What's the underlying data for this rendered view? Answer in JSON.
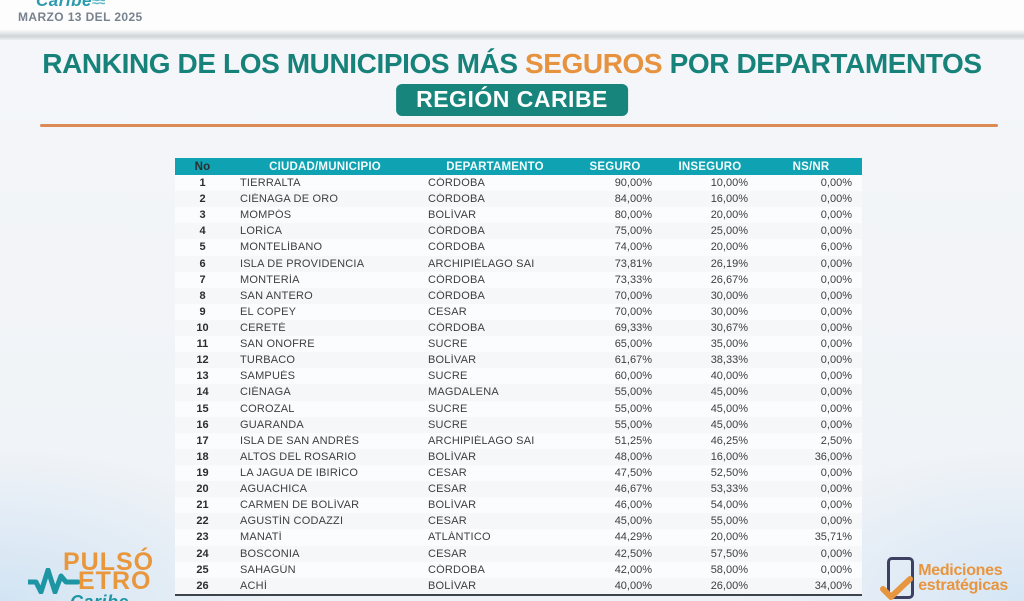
{
  "topbar": {
    "brand": "Caribe",
    "brand_waves": "≈≈",
    "date": "MARZO 13 DEL 2025"
  },
  "title": {
    "prefix": "RANKING DE LOS MUNICIPIOS MÁS ",
    "highlight": "SEGUROS",
    "suffix": " POR DEPARTAMENTOS",
    "badge": "REGIÓN CARIBE"
  },
  "table": {
    "columns": [
      "No",
      "CIUDAD/MUNICIPIO",
      "DEPARTAMENTO",
      "SEGURO",
      "INSEGURO",
      "NS/NR"
    ],
    "rows": [
      {
        "no": "1",
        "city": "TIERRALTA",
        "department": "CÓRDOBA",
        "safe": "90,00%",
        "unsafe": "10,00%",
        "nsnr": "0,00%"
      },
      {
        "no": "2",
        "city": "CIÉNAGA DE ORO",
        "department": "CÓRDOBA",
        "safe": "84,00%",
        "unsafe": "16,00%",
        "nsnr": "0,00%"
      },
      {
        "no": "3",
        "city": "MOMPÓS",
        "department": "BOLÍVAR",
        "safe": "80,00%",
        "unsafe": "20,00%",
        "nsnr": "0,00%"
      },
      {
        "no": "4",
        "city": "LORÍCA",
        "department": "CÓRDOBA",
        "safe": "75,00%",
        "unsafe": "25,00%",
        "nsnr": "0,00%"
      },
      {
        "no": "5",
        "city": "MONTELÍBANO",
        "department": "CÓRDOBA",
        "safe": "74,00%",
        "unsafe": "20,00%",
        "nsnr": "6,00%"
      },
      {
        "no": "6",
        "city": "ISLA DE PROVIDENCIA",
        "department": "ARCHIPIÉLAGO SAI",
        "safe": "73,81%",
        "unsafe": "26,19%",
        "nsnr": "0,00%"
      },
      {
        "no": "7",
        "city": "MONTERÍA",
        "department": "CÓRDOBA",
        "safe": "73,33%",
        "unsafe": "26,67%",
        "nsnr": "0,00%"
      },
      {
        "no": "8",
        "city": "SAN ANTERO",
        "department": "CÓRDOBA",
        "safe": "70,00%",
        "unsafe": "30,00%",
        "nsnr": "0,00%"
      },
      {
        "no": "9",
        "city": "EL COPEY",
        "department": "CESAR",
        "safe": "70,00%",
        "unsafe": "30,00%",
        "nsnr": "0,00%"
      },
      {
        "no": "10",
        "city": "CERETÉ",
        "department": "CÓRDOBA",
        "safe": "69,33%",
        "unsafe": "30,67%",
        "nsnr": "0,00%"
      },
      {
        "no": "11",
        "city": "SAN ONOFRE",
        "department": "SUCRE",
        "safe": "65,00%",
        "unsafe": "35,00%",
        "nsnr": "0,00%"
      },
      {
        "no": "12",
        "city": "TURBACO",
        "department": "BOLÍVAR",
        "safe": "61,67%",
        "unsafe": "38,33%",
        "nsnr": "0,00%"
      },
      {
        "no": "13",
        "city": "SAMPUÉS",
        "department": "SUCRE",
        "safe": "60,00%",
        "unsafe": "40,00%",
        "nsnr": "0,00%"
      },
      {
        "no": "14",
        "city": "CIÉNAGA",
        "department": "MAGDALENA",
        "safe": "55,00%",
        "unsafe": "45,00%",
        "nsnr": "0,00%"
      },
      {
        "no": "15",
        "city": "COROZAL",
        "department": "SUCRE",
        "safe": "55,00%",
        "unsafe": "45,00%",
        "nsnr": "0,00%"
      },
      {
        "no": "16",
        "city": "GUARANDA",
        "department": "SUCRE",
        "safe": "55,00%",
        "unsafe": "45,00%",
        "nsnr": "0,00%"
      },
      {
        "no": "17",
        "city": "ISLA DE SAN ANDRÉS",
        "department": "ARCHIPIÉLAGO SAI",
        "safe": "51,25%",
        "unsafe": "46,25%",
        "nsnr": "2,50%"
      },
      {
        "no": "18",
        "city": "ALTOS DEL ROSARIO",
        "department": "BOLÍVAR",
        "safe": "48,00%",
        "unsafe": "16,00%",
        "nsnr": "36,00%"
      },
      {
        "no": "19",
        "city": "LA JAGUA DE IBIRÍCO",
        "department": "CESAR",
        "safe": "47,50%",
        "unsafe": "52,50%",
        "nsnr": "0,00%"
      },
      {
        "no": "20",
        "city": "AGUACHICA",
        "department": "CESAR",
        "safe": "46,67%",
        "unsafe": "53,33%",
        "nsnr": "0,00%"
      },
      {
        "no": "21",
        "city": "CARMEN DE BOLÍVAR",
        "department": "BOLÍVAR",
        "safe": "46,00%",
        "unsafe": "54,00%",
        "nsnr": "0,00%"
      },
      {
        "no": "22",
        "city": "AGUSTÍN CODAZZI",
        "department": "CESAR",
        "safe": "45,00%",
        "unsafe": "55,00%",
        "nsnr": "0,00%"
      },
      {
        "no": "23",
        "city": "MANATÍ",
        "department": "ATLÁNTICO",
        "safe": "44,29%",
        "unsafe": "20,00%",
        "nsnr": "35,71%"
      },
      {
        "no": "24",
        "city": "BOSCONIA",
        "department": "CESAR",
        "safe": "42,50%",
        "unsafe": "57,50%",
        "nsnr": "0,00%"
      },
      {
        "no": "25",
        "city": "SAHAGÚN",
        "department": "CÓRDOBA",
        "safe": "42,00%",
        "unsafe": "58,00%",
        "nsnr": "0,00%"
      },
      {
        "no": "26",
        "city": "ACHÍ",
        "department": "BOLÍVAR",
        "safe": "40,00%",
        "unsafe": "26,00%",
        "nsnr": "34,00%"
      }
    ]
  },
  "footer": {
    "pulsometro": {
      "line1": "PULSÓ",
      "line2": "ETRO",
      "line3": "Caribe"
    },
    "mediciones": {
      "line1": "Mediciones",
      "line2": "estratégicas"
    }
  },
  "colors": {
    "title_teal": "#17827a",
    "accent_orange": "#e6923f",
    "badge_teal": "#17857c",
    "table_header_teal": "#0ea2b2",
    "rule_orange": "#dc8a55",
    "logo_orange": "#e8973c",
    "logo_teal": "#1e95a3",
    "medic_navy": "#3d3f63"
  }
}
